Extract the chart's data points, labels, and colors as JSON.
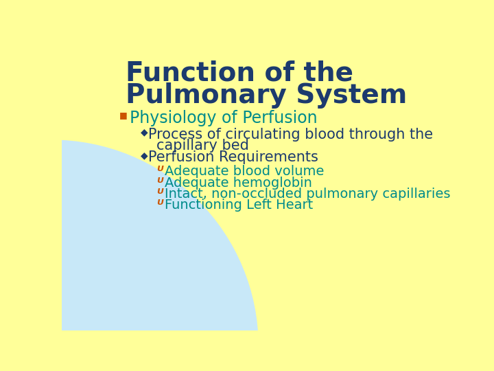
{
  "background_color": "#FFFF99",
  "circle_color": "#C8E8F8",
  "title_line1": "Function of the",
  "title_line2": "Pulmonary System",
  "title_color": "#1C3A6E",
  "title_fontsize": 28,
  "bullet1_text": "Physiology of Perfusion",
  "bullet1_color": "#008B8B",
  "bullet1_fontsize": 17,
  "bullet1_marker_color": "#CC5500",
  "sub_bullet_color": "#1C3A6E",
  "sub_bullet_marker_color": "#1C3A6E",
  "sub_bullet_fontsize": 15,
  "sub2_text": "Perfusion Requirements",
  "sub_sub_bullet_color": "#008B8B",
  "sub_sub_bullet_marker_color": "#CC5500",
  "sub_sub_fontsize": 14,
  "sub_sub_items": [
    "Adequate blood volume",
    "Adequate hemoglobin",
    "Intact, non-occluded pulmonary capillaries",
    "Functioning Left Heart"
  ]
}
